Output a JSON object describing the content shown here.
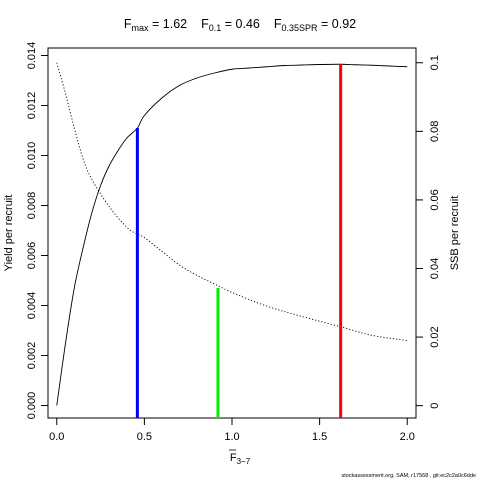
{
  "title": {
    "fmax_label": "F",
    "fmax_sub": "max",
    "fmax_value": " = 1.62",
    "f01_label": "F",
    "f01_sub": "0.1",
    "f01_value": " = 0.46",
    "fspr_label": "F",
    "fspr_sub": "0.35SPR",
    "fspr_value": " = 0.92"
  },
  "footer": "stockassessment.org, SAM, r17568 , git:ec2c2a0c6dde",
  "chart_data": {
    "type": "line",
    "xlabel": "F",
    "xlabel_sub": "3−7",
    "ylabel_left": "Yield per recruit",
    "ylabel_right": "SSB per recruit",
    "xlim": [
      -0.05,
      2.05
    ],
    "ylim_left": [
      -0.0005,
      0.0143
    ],
    "ylim_right": [
      -0.0036,
      0.1043
    ],
    "x_ticks": [
      "0.0",
      "0.5",
      "1.0",
      "1.5",
      "2.0"
    ],
    "x_tick_values": [
      0,
      0.5,
      1.0,
      1.5,
      2.0
    ],
    "y_left_ticks": [
      "0.000",
      "0.002",
      "0.004",
      "0.006",
      "0.008",
      "0.010",
      "0.012",
      "0.014"
    ],
    "y_left_tick_values": [
      0,
      0.002,
      0.004,
      0.006,
      0.008,
      0.01,
      0.012,
      0.014
    ],
    "y_right_ticks": [
      "0",
      "0.02",
      "0.04",
      "0.06",
      "0.08",
      "0.1"
    ],
    "y_right_tick_values": [
      0,
      0.02,
      0.04,
      0.06,
      0.08,
      0.1
    ],
    "series": [
      {
        "axis": "left",
        "style": "solid",
        "x": [
          0,
          0.05,
          0.1,
          0.15,
          0.2,
          0.25,
          0.3,
          0.35,
          0.4,
          0.46,
          0.5,
          0.6,
          0.7,
          0.8,
          0.9,
          1.0,
          1.1,
          1.2,
          1.3,
          1.4,
          1.5,
          1.62,
          1.7,
          1.8,
          1.9,
          2.0
        ],
        "y": [
          0.0,
          0.0025,
          0.0047,
          0.0063,
          0.0077,
          0.0088,
          0.0096,
          0.0102,
          0.0107,
          0.0111,
          0.0116,
          0.0123,
          0.0128,
          0.0131,
          0.0133,
          0.01345,
          0.0135,
          0.01355,
          0.0136,
          0.01362,
          0.01364,
          0.01365,
          0.01363,
          0.01361,
          0.01358,
          0.01355
        ]
      },
      {
        "axis": "right",
        "style": "dotted",
        "x": [
          0,
          0.05,
          0.1,
          0.15,
          0.2,
          0.3,
          0.4,
          0.46,
          0.5,
          0.6,
          0.7,
          0.8,
          0.92,
          1.0,
          1.2,
          1.4,
          1.62,
          1.8,
          2.0
        ],
        "y": [
          0.1,
          0.091,
          0.081,
          0.072,
          0.066,
          0.058,
          0.052,
          0.05,
          0.049,
          0.045,
          0.041,
          0.038,
          0.035,
          0.033,
          0.029,
          0.026,
          0.023,
          0.0205,
          0.019
        ]
      }
    ],
    "reference_lines": [
      {
        "name": "Fmax",
        "x": 1.62,
        "y_left": 0.01365,
        "color": "#ff0000"
      },
      {
        "name": "F0.1",
        "x": 0.46,
        "y_left": 0.0111,
        "color": "#0000ff"
      },
      {
        "name": "F0.35SPR",
        "x": 0.92,
        "y_left": 0.0047,
        "color": "#00ee00"
      }
    ]
  }
}
